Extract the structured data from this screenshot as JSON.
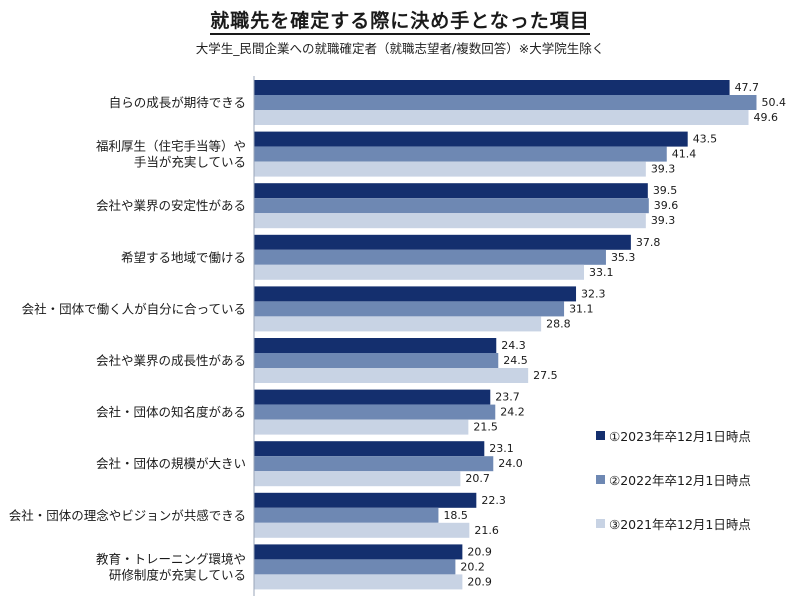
{
  "title": "就職先を確定する際に決め手となった項目",
  "subtitle": "大学生_民間企業への就職確定者（就職志望者/複数回答）※大学院生除く",
  "colors": [
    "#142f6e",
    "#6e88b3",
    "#c8d3e4"
  ],
  "chart_data": {
    "type": "bar",
    "orientation": "horizontal",
    "categories": [
      [
        "自らの成長が期待できる"
      ],
      [
        "福利厚生（住宅手当等）や",
        "手当が充実している"
      ],
      [
        "会社や業界の安定性がある"
      ],
      [
        "希望する地域で働ける"
      ],
      [
        "会社・団体で働く人が自分に合っている"
      ],
      [
        "会社や業界の成長性がある"
      ],
      [
        "会社・団体の知名度がある"
      ],
      [
        "会社・団体の規模が大きい"
      ],
      [
        "会社・団体の理念やビジョンが共感できる"
      ],
      [
        "教育・トレーニング環境や",
        "研修制度が充実している"
      ]
    ],
    "series": [
      {
        "name": "①2023年卒12月1日時点",
        "values": [
          47.7,
          43.5,
          39.5,
          37.8,
          32.3,
          24.3,
          23.7,
          23.1,
          22.3,
          20.9
        ]
      },
      {
        "name": "②2022年卒12月1日時点",
        "values": [
          50.4,
          41.4,
          39.6,
          35.3,
          31.1,
          24.5,
          24.2,
          24.0,
          18.5,
          20.2
        ]
      },
      {
        "name": "③2021年卒12月1日時点",
        "values": [
          49.6,
          39.3,
          39.3,
          33.1,
          28.8,
          27.5,
          21.5,
          20.7,
          21.6,
          20.9
        ]
      }
    ],
    "xlim": [
      0,
      52
    ],
    "value_format": "0.0",
    "grid": false,
    "legend_position": "bottom-right"
  }
}
